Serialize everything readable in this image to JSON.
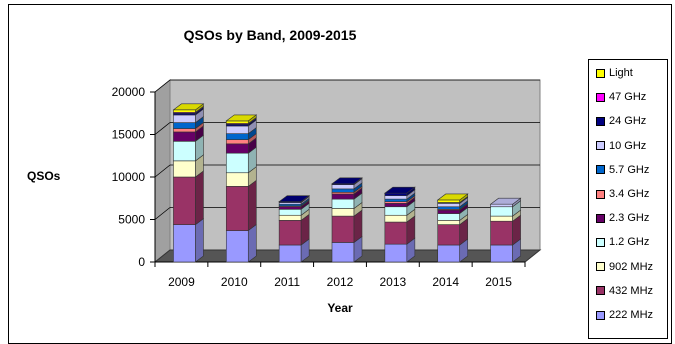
{
  "chart_data": {
    "type": "bar",
    "stacked": true,
    "style": "3d",
    "title": "QSOs by Band, 2009-2015",
    "xlabel": "Year",
    "ylabel": "QSOs",
    "ylim": [
      0,
      20000
    ],
    "yticks": [
      "0",
      "5000",
      "10000",
      "15000",
      "20000"
    ],
    "grid": true,
    "legend_position": "right",
    "categories": [
      "2009",
      "2010",
      "2011",
      "2012",
      "2013",
      "2014",
      "2015"
    ],
    "series": [
      {
        "name": "222 MHz",
        "color": "#9999ff",
        "values": [
          4400,
          3700,
          2000,
          2300,
          2100,
          2000,
          2000
        ]
      },
      {
        "name": "432 MHz",
        "color": "#993366",
        "values": [
          5600,
          5200,
          2900,
          3100,
          2600,
          2400,
          2800
        ]
      },
      {
        "name": "902 MHz",
        "color": "#ffffcc",
        "values": [
          1900,
          1600,
          600,
          900,
          800,
          500,
          600
        ]
      },
      {
        "name": "1.2 GHz",
        "color": "#ccffff",
        "values": [
          2300,
          2300,
          700,
          1100,
          1000,
          800,
          1100
        ]
      },
      {
        "name": "2.3 GHz",
        "color": "#660066",
        "values": [
          1100,
          1100,
          300,
          600,
          400,
          400,
          0
        ]
      },
      {
        "name": "3.4 GHz",
        "color": "#ff8080",
        "values": [
          400,
          500,
          100,
          200,
          200,
          100,
          0
        ]
      },
      {
        "name": "5.7 GHz",
        "color": "#0066cc",
        "values": [
          700,
          700,
          200,
          400,
          300,
          300,
          0
        ]
      },
      {
        "name": "10 GHz",
        "color": "#ccccff",
        "values": [
          900,
          900,
          200,
          500,
          400,
          400,
          300
        ]
      },
      {
        "name": "24 GHz",
        "color": "#000080",
        "values": [
          200,
          200,
          100,
          100,
          300,
          100,
          0
        ]
      },
      {
        "name": "47 GHz",
        "color": "#ff00ff",
        "values": [
          100,
          100,
          0,
          0,
          0,
          0,
          0
        ]
      },
      {
        "name": "Light",
        "color": "#ffff00",
        "values": [
          300,
          300,
          0,
          0,
          0,
          300,
          0
        ]
      }
    ]
  }
}
